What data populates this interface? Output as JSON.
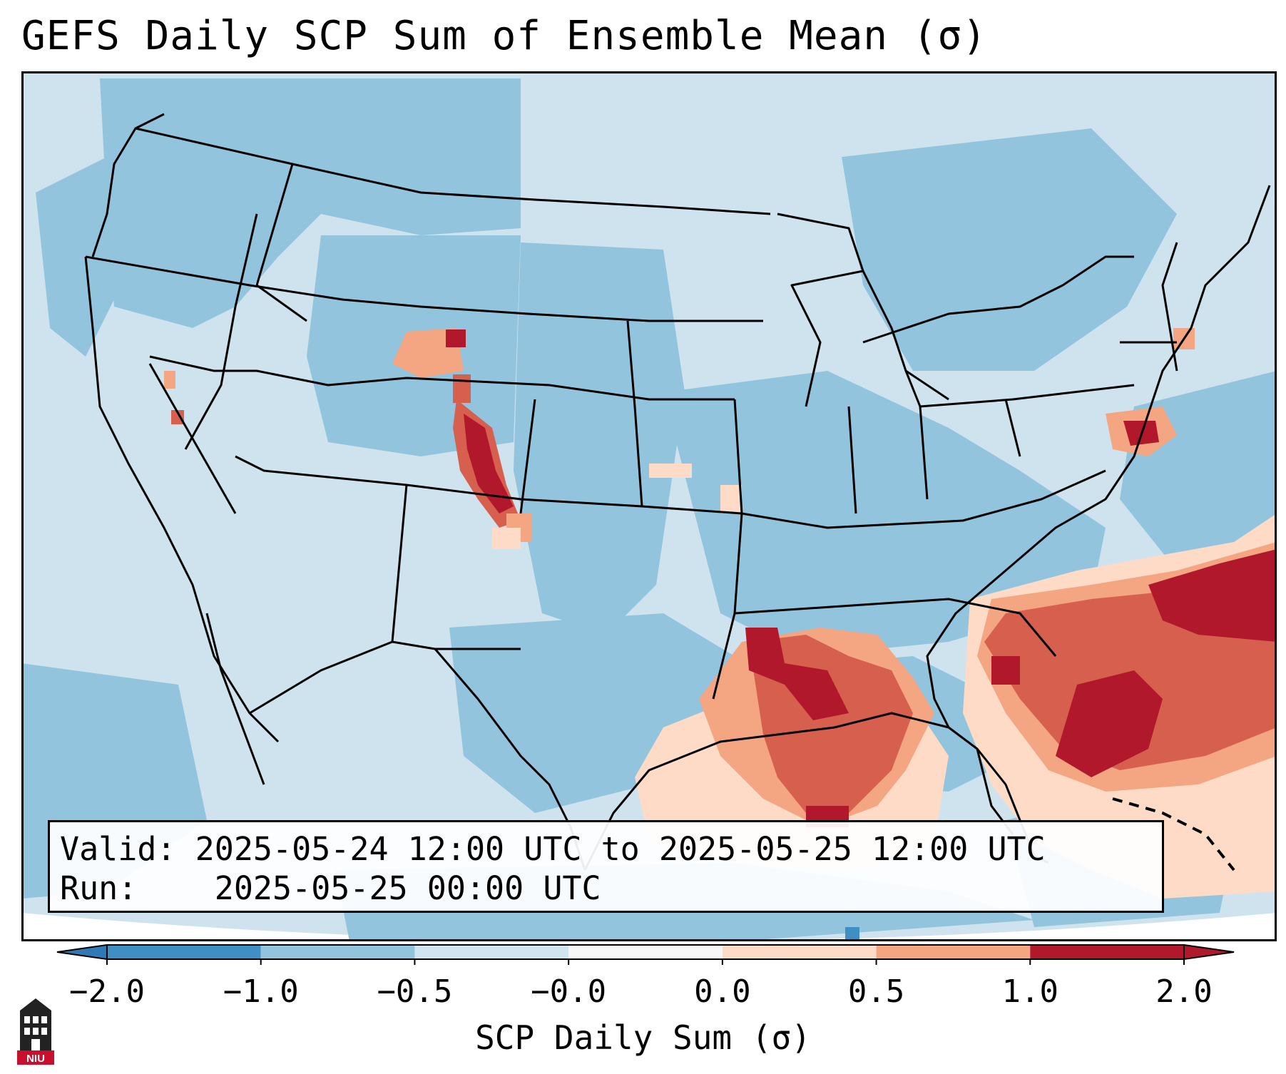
{
  "title": "GEFS Daily SCP Sum of Ensemble Mean (σ)",
  "info": {
    "valid_label": "Valid:",
    "valid_value": "2025-05-24 12:00 UTC to 2025-05-25 12:00 UTC",
    "run_label": "Run:",
    "run_value": "2025-05-25 00:00 UTC"
  },
  "colorbar": {
    "label": "SCP Daily Sum (σ)",
    "ticks": [
      "−2.0",
      "−1.0",
      "−0.5",
      "−0.0",
      "0.0",
      "0.5",
      "1.0",
      "2.0"
    ],
    "colors": [
      "#3f8fc5",
      "#92c4de",
      "#d1e5f0",
      "#f7f7f7",
      "#fddbc7",
      "#f4a582",
      "#d6604d",
      "#b2182b"
    ],
    "under_color": "#2f79b5",
    "over_color": "#b2182b"
  },
  "logo": {
    "text": "NIU",
    "icon": "university-building-icon",
    "color": "#c8102e"
  },
  "map": {
    "icon": "conus-basemap",
    "land_water_color": "#cfe3ef",
    "ensemble_field_color": "#92c4de",
    "features": [
      {
        "name": "rockies-red-band",
        "level": 2
      },
      {
        "name": "wyoming-patch",
        "level": 1.5
      },
      {
        "name": "gulf-coast-red-area",
        "level": 2
      },
      {
        "name": "atlantic-red-area",
        "level": 2
      },
      {
        "name": "mid-atlantic-patch",
        "level": 1.5
      }
    ]
  }
}
